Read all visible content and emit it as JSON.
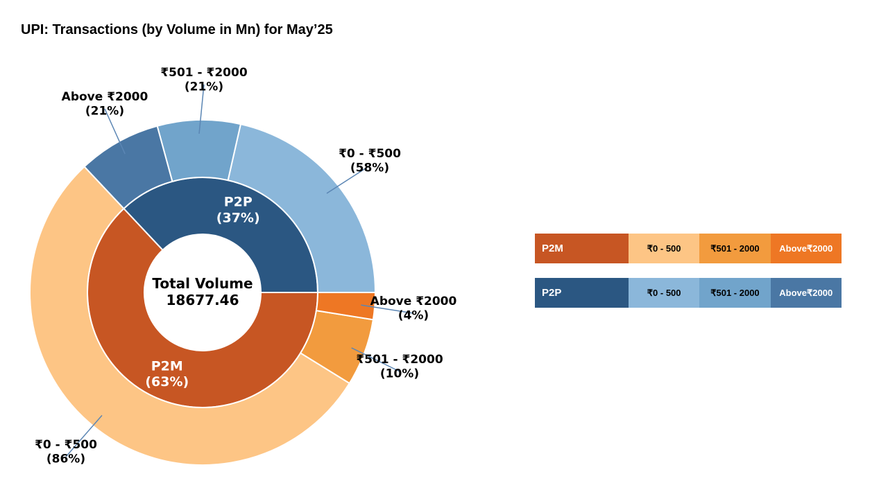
{
  "title": "UPI: Transactions (by Volume in Mn) for May’25",
  "chart_data": {
    "type": "pie",
    "variant": "nested-donut",
    "center_label": "Total Volume",
    "total": "18677.46",
    "inner": [
      {
        "key": "p2p",
        "name": "P2P",
        "pct": 37,
        "label": "(37%)",
        "color": "#2b5782"
      },
      {
        "key": "p2m",
        "name": "P2M",
        "pct": 63,
        "label": "(63%)",
        "color": "#c75623"
      }
    ],
    "outer": [
      {
        "key": "p2p-0-500",
        "parent": "p2p",
        "name": "₹0 - ₹500",
        "label": "(58%)",
        "share_of_parent": 58,
        "color": "#8bb7da"
      },
      {
        "key": "p2p-501-2000",
        "parent": "p2p",
        "name": "₹501 - ₹2000",
        "label": "(21%)",
        "share_of_parent": 21,
        "color": "#71a4cb"
      },
      {
        "key": "p2p-above-2000",
        "parent": "p2p",
        "name": "Above ₹2000",
        "label": "(21%)",
        "share_of_parent": 21,
        "color": "#4a77a4"
      },
      {
        "key": "p2m-0-500",
        "parent": "p2m",
        "name": "₹0 - ₹500",
        "label": "(86%)",
        "share_of_parent": 86,
        "color": "#fdc585"
      },
      {
        "key": "p2m-501-2000",
        "parent": "p2m",
        "name": "₹501 - ₹2000",
        "label": "(10%)",
        "share_of_parent": 10,
        "color": "#f29b3e"
      },
      {
        "key": "p2m-above-2000",
        "parent": "p2m",
        "name": "Above ₹2000",
        "label": "(4%)",
        "share_of_parent": 4,
        "color": "#ee7724"
      }
    ]
  },
  "legend": {
    "p2m": {
      "label": "P2M",
      "color": "#c75623",
      "items": [
        {
          "text": "₹0 - 500",
          "color": "#fdc585",
          "text_color": "#000000"
        },
        {
          "text": "₹501 - 2000",
          "color": "#f29b3e",
          "text_color": "#000000"
        },
        {
          "line1": "Above",
          "line2": "₹2000",
          "color": "#ee7724",
          "text_color": "#ffffff"
        }
      ]
    },
    "p2p": {
      "label": "P2P",
      "color": "#2b5782",
      "items": [
        {
          "text": "₹0 - 500",
          "color": "#8bb7da",
          "text_color": "#000000"
        },
        {
          "text": "₹501 - 2000",
          "color": "#71a4cb",
          "text_color": "#000000"
        },
        {
          "line1": "Above",
          "line2": "₹2000",
          "color": "#4a77a4",
          "text_color": "#ffffff"
        }
      ]
    }
  }
}
